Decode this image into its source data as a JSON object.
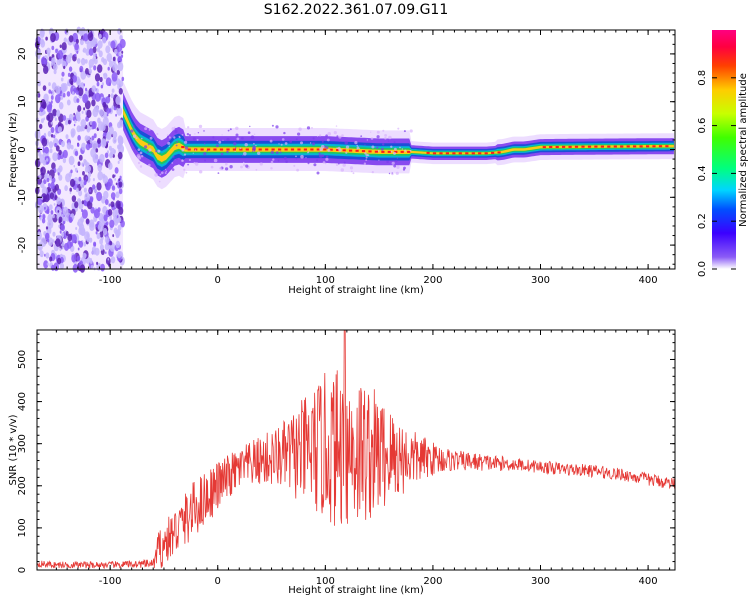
{
  "title": "S162.2022.361.07.09.G11",
  "colors": {
    "red_line": "#e53935",
    "band_outer": "#7c3aed",
    "noise_light": "#e9d5ff"
  },
  "chart_data": [
    {
      "type": "heatmap",
      "title": "S162.2022.361.07.09.G11",
      "xlabel": "Height of straight line (km)",
      "ylabel": "Frequency (Hz)",
      "xlim": [
        -168,
        425
      ],
      "ylim": [
        -25,
        25
      ],
      "xticks": [
        -100,
        0,
        100,
        200,
        300,
        400
      ],
      "yticks": [
        -20,
        -10,
        0,
        10,
        20
      ],
      "noise_region_x": [
        -168,
        -88
      ],
      "ridge": {
        "x": [
          -88,
          -84,
          -80,
          -76,
          -72,
          -68,
          -64,
          -60,
          -56,
          -52,
          -48,
          -44,
          -40,
          -36,
          -30,
          -20,
          0,
          50,
          100,
          150,
          180,
          200,
          250,
          265,
          275,
          285,
          300,
          350,
          425
        ],
        "freq": [
          8,
          6,
          4,
          2.5,
          1.5,
          1,
          0.5,
          0,
          -1.5,
          -2,
          -1.5,
          -0.5,
          0.5,
          0.8,
          0,
          0,
          0,
          0,
          0,
          -0.5,
          -0.5,
          -0.8,
          -0.8,
          -0.5,
          0,
          0,
          0.5,
          0.6,
          0.7
        ]
      },
      "colorbar": {
        "label": "Normalized spectral amplitude",
        "range": [
          0,
          1
        ],
        "ticks": [
          "0.0",
          "0.2",
          "0.4",
          "0.6",
          "0.8"
        ],
        "colormap": "rainbow"
      }
    },
    {
      "type": "line",
      "xlabel": "Height of straight line (km)",
      "ylabel": "SNR (10 * v/v)",
      "xlim": [
        -168,
        425
      ],
      "ylim": [
        0,
        570
      ],
      "xticks": [
        -100,
        0,
        100,
        200,
        300,
        400
      ],
      "yticks": [
        0,
        100,
        200,
        300,
        400,
        500
      ],
      "envelope": {
        "x": [
          -168,
          -150,
          -100,
          -60,
          -55,
          -50,
          -40,
          -20,
          0,
          20,
          40,
          60,
          80,
          100,
          120,
          140,
          160,
          180,
          200,
          220,
          250,
          280,
          300,
          320,
          350,
          380,
          400,
          425
        ],
        "mean": [
          15,
          12,
          12,
          15,
          45,
          60,
          90,
          150,
          200,
          240,
          260,
          270,
          280,
          290,
          290,
          280,
          270,
          265,
          265,
          260,
          255,
          250,
          245,
          240,
          235,
          225,
          215,
          205
        ],
        "spread": [
          8,
          8,
          8,
          10,
          50,
          50,
          60,
          70,
          60,
          50,
          60,
          80,
          130,
          180,
          200,
          170,
          120,
          70,
          40,
          25,
          20,
          15,
          15,
          15,
          15,
          15,
          15,
          15
        ]
      },
      "peak": {
        "x": 118,
        "y": 570
      }
    }
  ]
}
